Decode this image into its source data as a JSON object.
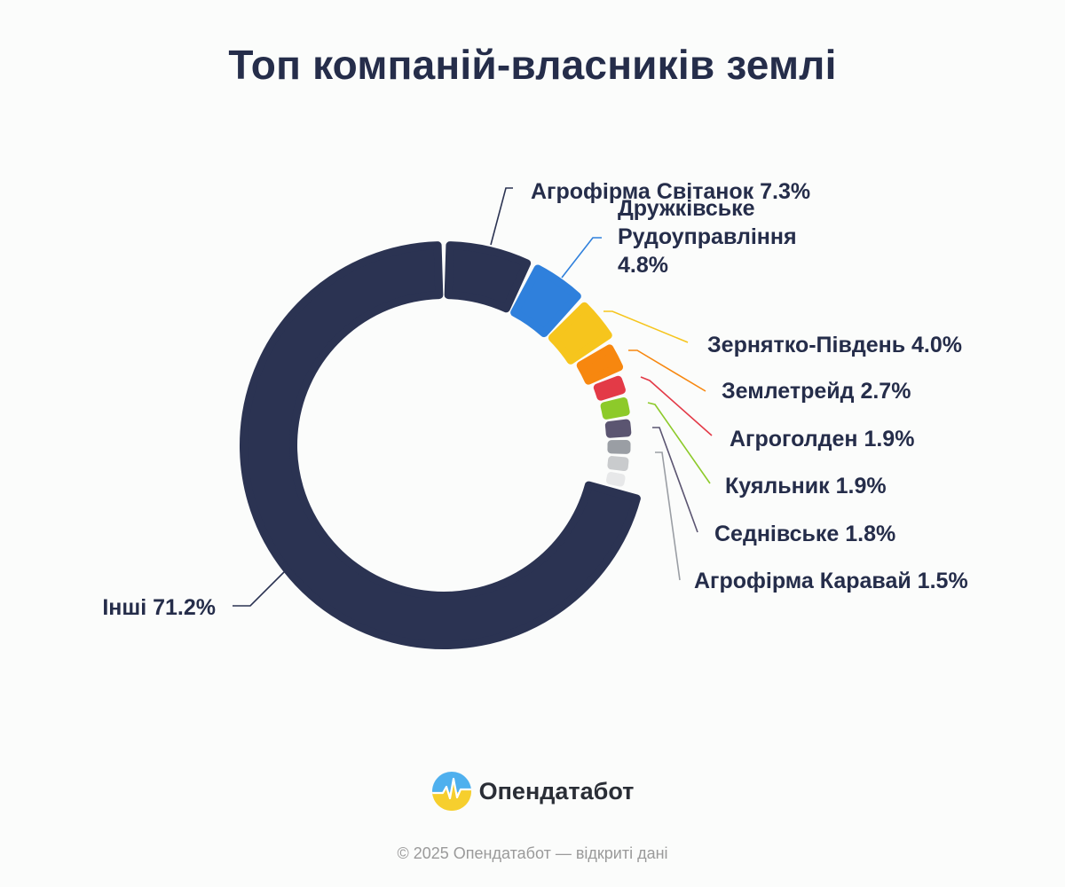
{
  "chart_data": {
    "type": "pie",
    "title": "Топ компаній-власників землі",
    "slices": [
      {
        "name": "Агрофірма Світанок",
        "value": 7.3,
        "label": "Агрофірма Світанок 7.3%",
        "color": "#2b3352"
      },
      {
        "name": "Дружківське Рудоуправління",
        "value": 4.8,
        "label_lines": [
          "Дружківське",
          "Рудоуправління",
          "4.8%"
        ],
        "color": "#2f80dc"
      },
      {
        "name": "Зернятко-Південь",
        "value": 4.0,
        "label": "Зернятко-Південь 4.0%",
        "color": "#f6c51d"
      },
      {
        "name": "Землетрейд",
        "value": 2.7,
        "label": "Землетрейд 2.7%",
        "color": "#f7870f"
      },
      {
        "name": "Агроголден",
        "value": 1.9,
        "label": "Агроголден 1.9%",
        "color": "#e33a47"
      },
      {
        "name": "Куяльник",
        "value": 1.9,
        "label": "Куяльник 1.9%",
        "color": "#8dca2a"
      },
      {
        "name": "Седнівське",
        "value": 1.8,
        "label": "Седнівське 1.8%",
        "color": "#5b5571"
      },
      {
        "name": "Агрофірма Каравай",
        "value": 1.5,
        "label": "Агрофірма Каравай 1.5%",
        "color": "#9a9ea4"
      },
      {
        "name": "",
        "value": 1.5,
        "label": "",
        "color": "#c9cbcd"
      },
      {
        "name": "",
        "value": 1.4,
        "label": "",
        "color": "#e7e8e9"
      },
      {
        "name": "Інші",
        "value": 71.2,
        "label": "Інші 71.2%",
        "color": "#2b3352"
      }
    ]
  },
  "brand": {
    "name": "Опендатабот",
    "logo_icon": "opendatabot-logo-icon"
  },
  "footer": {
    "copyright": "© 2025 Опендатабот — відкриті дані"
  }
}
